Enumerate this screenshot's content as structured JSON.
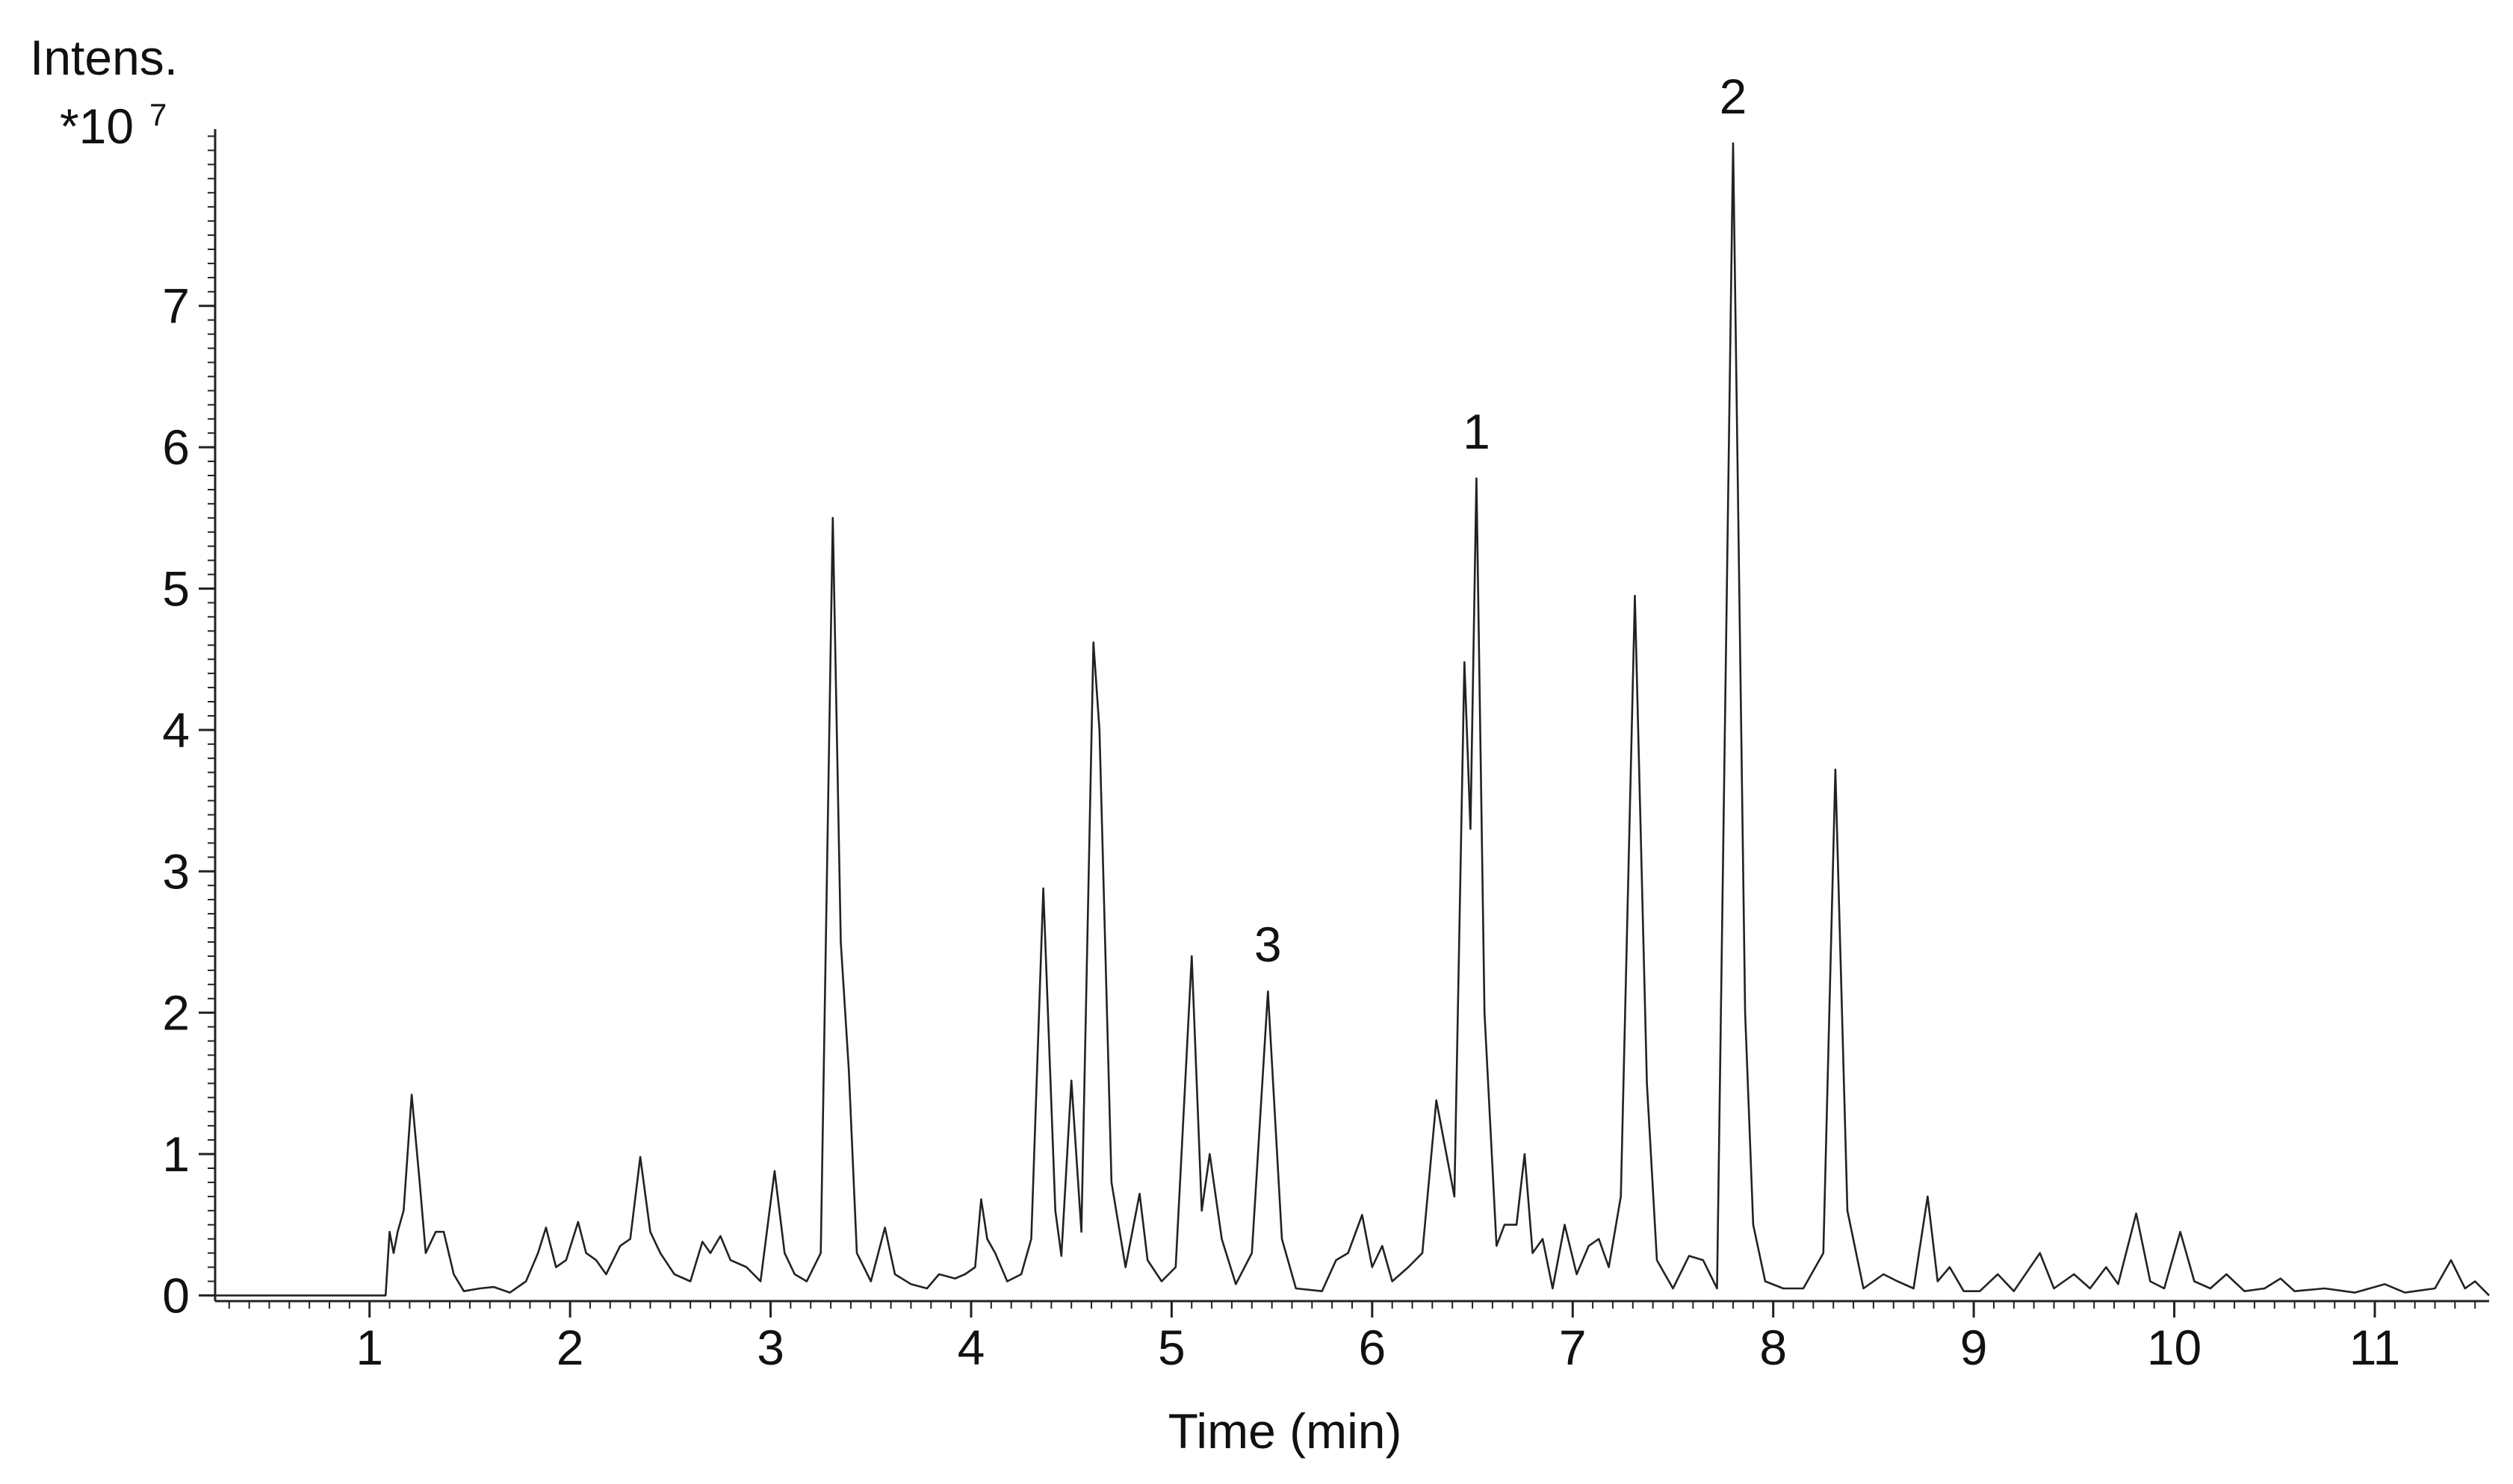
{
  "chart_data": {
    "type": "line",
    "x_label": "Time (min)",
    "y_label": "Intens.",
    "y_scale": "*10",
    "y_scale_exp": "7",
    "xlim": [
      0.23,
      11.57
    ],
    "ylim": [
      -0.04,
      8.25
    ],
    "xticks": [
      1,
      2,
      3,
      4,
      5,
      6,
      7,
      8,
      9,
      10,
      11
    ],
    "yticks": [
      0,
      1,
      2,
      3,
      4,
      5,
      6,
      7
    ],
    "x_minor_step": 0.1,
    "y_minor_step": 0.1,
    "annotations": [
      {
        "text": "1",
        "x": 6.52,
        "y": 5.78
      },
      {
        "text": "2",
        "x": 7.8,
        "y": 8.15
      },
      {
        "text": "3",
        "x": 5.48,
        "y": 2.15
      }
    ],
    "series": [
      {
        "color": "#222222",
        "x": [
          0.23,
          1.08,
          1.1,
          1.12,
          1.14,
          1.17,
          1.21,
          1.25,
          1.28,
          1.33,
          1.37,
          1.42,
          1.47,
          1.55,
          1.62,
          1.7,
          1.78,
          1.84,
          1.88,
          1.93,
          1.98,
          2.04,
          2.08,
          2.13,
          2.18,
          2.25,
          2.3,
          2.35,
          2.4,
          2.45,
          2.52,
          2.6,
          2.66,
          2.7,
          2.75,
          2.8,
          2.88,
          2.95,
          3.02,
          3.07,
          3.12,
          3.18,
          3.25,
          3.31,
          3.35,
          3.39,
          3.43,
          3.5,
          3.57,
          3.62,
          3.7,
          3.78,
          3.84,
          3.92,
          3.97,
          4.02,
          4.05,
          4.08,
          4.12,
          4.18,
          4.25,
          4.3,
          4.36,
          4.42,
          4.45,
          4.5,
          4.55,
          4.61,
          4.64,
          4.7,
          4.77,
          4.84,
          4.88,
          4.95,
          5.02,
          5.1,
          5.15,
          5.19,
          5.25,
          5.32,
          5.4,
          5.48,
          5.55,
          5.62,
          5.75,
          5.82,
          5.88,
          5.95,
          6.0,
          6.05,
          6.1,
          6.18,
          6.25,
          6.32,
          6.37,
          6.41,
          6.46,
          6.49,
          6.52,
          6.56,
          6.62,
          6.66,
          6.72,
          6.76,
          6.8,
          6.85,
          6.9,
          6.96,
          7.02,
          7.08,
          7.13,
          7.18,
          7.24,
          7.31,
          7.37,
          7.42,
          7.5,
          7.58,
          7.65,
          7.72,
          7.8,
          7.86,
          7.9,
          7.96,
          8.05,
          8.15,
          8.25,
          8.31,
          8.37,
          8.45,
          8.55,
          8.62,
          8.7,
          8.77,
          8.82,
          8.88,
          8.95,
          9.03,
          9.12,
          9.2,
          9.33,
          9.4,
          9.5,
          9.58,
          9.66,
          9.72,
          9.81,
          9.88,
          9.95,
          10.03,
          10.1,
          10.18,
          10.26,
          10.35,
          10.45,
          10.53,
          10.6,
          10.75,
          10.9,
          11.05,
          11.15,
          11.3,
          11.38,
          11.45,
          11.5,
          11.57
        ],
        "values": [
          0,
          0,
          0.45,
          0.3,
          0.45,
          0.6,
          1.42,
          0.8,
          0.3,
          0.45,
          0.45,
          0.15,
          0.03,
          0.05,
          0.06,
          0.02,
          0.1,
          0.3,
          0.48,
          0.2,
          0.25,
          0.52,
          0.3,
          0.25,
          0.15,
          0.35,
          0.4,
          0.98,
          0.45,
          0.3,
          0.15,
          0.1,
          0.38,
          0.3,
          0.42,
          0.25,
          0.2,
          0.1,
          0.88,
          0.3,
          0.15,
          0.1,
          0.3,
          5.5,
          2.5,
          1.6,
          0.3,
          0.1,
          0.48,
          0.15,
          0.08,
          0.05,
          0.15,
          0.12,
          0.15,
          0.2,
          0.68,
          0.4,
          0.3,
          0.1,
          0.15,
          0.4,
          2.88,
          0.6,
          0.28,
          1.52,
          0.45,
          4.62,
          4.0,
          0.8,
          0.2,
          0.72,
          0.25,
          0.1,
          0.2,
          2.4,
          0.6,
          1.0,
          0.4,
          0.08,
          0.3,
          2.15,
          0.4,
          0.05,
          0.03,
          0.25,
          0.3,
          0.57,
          0.2,
          0.35,
          0.1,
          0.2,
          0.3,
          1.38,
          1.0,
          0.7,
          4.48,
          3.3,
          5.78,
          2.0,
          0.35,
          0.5,
          0.5,
          1.0,
          0.3,
          0.4,
          0.05,
          0.5,
          0.15,
          0.35,
          0.4,
          0.2,
          0.7,
          4.95,
          1.5,
          0.25,
          0.05,
          0.28,
          0.25,
          0.05,
          8.15,
          2.0,
          0.5,
          0.1,
          0.05,
          0.05,
          0.3,
          3.72,
          0.6,
          0.05,
          0.15,
          0.1,
          0.05,
          0.7,
          0.1,
          0.2,
          0.03,
          0.03,
          0.15,
          0.03,
          0.3,
          0.05,
          0.15,
          0.05,
          0.2,
          0.08,
          0.58,
          0.1,
          0.05,
          0.45,
          0.1,
          0.05,
          0.15,
          0.03,
          0.05,
          0.12,
          0.03,
          0.05,
          0.02,
          0.08,
          0.02,
          0.05,
          0.25,
          0.05,
          0.1,
          0
        ]
      }
    ]
  }
}
